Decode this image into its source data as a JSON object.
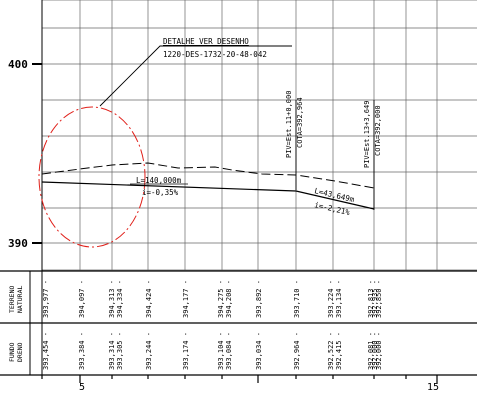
{
  "elevation_labels": [
    "400",
    "390"
  ],
  "callout": {
    "line1": "DETALHE VER DESENHO",
    "line2": "1220-DES-1732-20-48-042"
  },
  "piv_markers": [
    {
      "piv": "PIV=Est.11+0,000",
      "cota": "COTA=392,964"
    },
    {
      "piv": "PIV=Est.13+3,649",
      "cota": "COTA=392,000"
    }
  ],
  "segments": [
    {
      "length": "L=140,000m",
      "slope": "i=-0,35%"
    },
    {
      "length": "L=43,649m",
      "slope": "i=-2,21%"
    }
  ],
  "table": {
    "row_terreno_label": [
      "TERRENO",
      "NATURAL"
    ],
    "row_fundo_label": [
      "FUNDO",
      "DRENO"
    ],
    "terreno_values": [
      "393,977",
      "394,097",
      "394,313",
      "394,334",
      "394,424",
      "394,177",
      "394,275",
      "394,208",
      "393,892",
      "393,710",
      "393,224",
      "393,134",
      "392,813",
      "392,935",
      "392,850"
    ],
    "fundo_values": [
      "393,454",
      "393,384",
      "393,314",
      "393,305",
      "393,244",
      "393,174",
      "393,104",
      "393,084",
      "393,034",
      "392,964",
      "392,522",
      "392,415",
      "392,081",
      "392,000",
      "392,000"
    ]
  },
  "station_labels": [
    "5",
    "15"
  ],
  "colors": {
    "drawing": "#000000",
    "grid": "#555555",
    "detail_ellipse": "#e0201a"
  }
}
